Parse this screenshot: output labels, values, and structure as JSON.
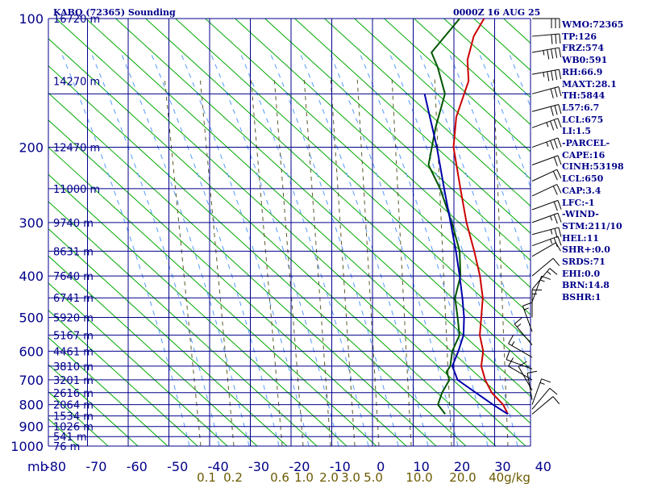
{
  "header": {
    "station": "KABQ (72365) Sounding",
    "time": "0000Z 16 AUG 25"
  },
  "indices": [
    "WMO:72365",
    "TP:126",
    "FRZ:574",
    "WB0:591",
    "RH:66.9",
    "MAXT:28.1",
    "TH:5844",
    "L57:6.7",
    "LCL:675",
    "LI:1.5",
    "-PARCEL-",
    "CAPE:16",
    "CINH:53198",
    "LCL:650",
    "CAP:3.4",
    "LFC:-1",
    "-WIND-",
    "STM:211/10",
    "HEL:11",
    "SHR+:0.0",
    "SRDS:71",
    "EHI:0.0",
    "BRN:14.8",
    "BSHR:1"
  ],
  "chart_data": {
    "type": "skew-t",
    "pressure_unit_label": "mb",
    "pressure_levels": [
      100,
      200,
      300,
      400,
      500,
      600,
      700,
      800,
      900,
      1000
    ],
    "pressure_range": [
      100,
      1000
    ],
    "temperature_ticks": [
      -80,
      -70,
      -60,
      -50,
      -40,
      -30,
      -20,
      -10,
      0,
      10,
      20,
      30,
      40
    ],
    "temperature_range": [
      -80,
      40
    ],
    "height_labels": [
      {
        "label": "16720 m",
        "p": 100
      },
      {
        "label": "14270 m",
        "p": 140
      },
      {
        "label": "12470 m",
        "p": 200
      },
      {
        "label": "11000 m",
        "p": 250
      },
      {
        "label": "9740 m",
        "p": 300
      },
      {
        "label": "8631 m",
        "p": 350
      },
      {
        "label": "7640 m",
        "p": 400
      },
      {
        "label": "6741 m",
        "p": 450
      },
      {
        "label": "5920 m",
        "p": 500
      },
      {
        "label": "5167 m",
        "p": 550
      },
      {
        "label": "4461 m",
        "p": 600
      },
      {
        "label": "3810 m",
        "p": 650
      },
      {
        "label": "3201 m",
        "p": 700
      },
      {
        "label": "2616 m",
        "p": 750
      },
      {
        "label": "2064 m",
        "p": 800
      },
      {
        "label": "1534 m",
        "p": 850
      },
      {
        "label": "1026 m",
        "p": 900
      },
      {
        "label": "541 m",
        "p": 950
      },
      {
        "label": "76 m",
        "p": 1000
      }
    ],
    "mixing_ratio_label_prefix": "",
    "mixing_ratio_labels": [
      "0.1",
      "0.2",
      "0.6",
      "1.0",
      "2.0",
      "3.0",
      "5.0",
      "10.0",
      "20.0",
      "40g/kg"
    ],
    "mixing_ratio_values": [
      0.1,
      0.2,
      0.6,
      1.0,
      2.0,
      3.0,
      5.0,
      10.0,
      20.0,
      40.0
    ],
    "series": [
      {
        "id": "temperature",
        "color": "#cc0000",
        "points": [
          [
            842,
            25.4
          ],
          [
            800,
            22.0
          ],
          [
            750,
            16.4
          ],
          [
            700,
            11.8
          ],
          [
            650,
            7.6
          ],
          [
            600,
            4.6
          ],
          [
            550,
            0.0
          ],
          [
            500,
            -3.8
          ],
          [
            450,
            -8.0
          ],
          [
            400,
            -13.8
          ],
          [
            350,
            -21.0
          ],
          [
            300,
            -29.6
          ],
          [
            250,
            -39.0
          ],
          [
            200,
            -50.4
          ],
          [
            170,
            -56.8
          ],
          [
            140,
            -62.2
          ],
          [
            125,
            -67.4
          ],
          [
            110,
            -71.4
          ],
          [
            100,
            -73.0
          ]
        ]
      },
      {
        "id": "dewpoint",
        "color": "#005500",
        "points": [
          [
            842,
            10.0
          ],
          [
            800,
            6.0
          ],
          [
            750,
            4.2
          ],
          [
            700,
            3.0
          ],
          [
            670,
            0.4
          ],
          [
            650,
            0.0
          ],
          [
            600,
            -3.0
          ],
          [
            550,
            -5.0
          ],
          [
            500,
            -9.6
          ],
          [
            450,
            -14.8
          ],
          [
            400,
            -18.6
          ],
          [
            350,
            -24.6
          ],
          [
            300,
            -33.2
          ],
          [
            250,
            -44.0
          ],
          [
            220,
            -52.4
          ],
          [
            180,
            -59.4
          ],
          [
            150,
            -65.0
          ],
          [
            130,
            -73.0
          ],
          [
            120,
            -78.0
          ],
          [
            100,
            -79.0
          ]
        ]
      },
      {
        "id": "parcel",
        "color": "#0000aa",
        "points": [
          [
            842,
            25.4
          ],
          [
            800,
            19.5
          ],
          [
            750,
            12.5
          ],
          [
            700,
            5.0
          ],
          [
            650,
            0.5
          ],
          [
            600,
            -1.5
          ],
          [
            550,
            -4.0
          ],
          [
            500,
            -8.0
          ],
          [
            450,
            -13.0
          ],
          [
            400,
            -18.8
          ],
          [
            350,
            -25.5
          ],
          [
            300,
            -33.5
          ],
          [
            250,
            -43.0
          ],
          [
            200,
            -54.5
          ],
          [
            150,
            -70.0
          ]
        ]
      }
    ],
    "wind_barbs": [
      [
        100,
        270,
        30
      ],
      [
        110,
        265,
        30
      ],
      [
        120,
        260,
        35
      ],
      [
        135,
        260,
        35
      ],
      [
        150,
        255,
        30
      ],
      [
        165,
        255,
        30
      ],
      [
        180,
        250,
        25
      ],
      [
        200,
        250,
        25
      ],
      [
        220,
        250,
        20
      ],
      [
        240,
        245,
        20
      ],
      [
        260,
        245,
        20
      ],
      [
        280,
        250,
        20
      ],
      [
        300,
        250,
        15
      ],
      [
        320,
        255,
        15
      ],
      [
        340,
        250,
        15
      ],
      [
        360,
        240,
        10
      ],
      [
        400,
        230,
        10
      ],
      [
        430,
        220,
        5
      ],
      [
        460,
        200,
        5
      ],
      [
        500,
        180,
        5
      ],
      [
        540,
        160,
        5
      ],
      [
        580,
        140,
        5
      ],
      [
        620,
        120,
        5
      ],
      [
        660,
        110,
        10
      ],
      [
        700,
        120,
        10
      ],
      [
        740,
        150,
        10
      ],
      [
        780,
        170,
        10
      ],
      [
        800,
        200,
        5
      ],
      [
        820,
        220,
        10
      ],
      [
        842,
        230,
        10
      ]
    ],
    "colors": {
      "isobar": "#00008b",
      "isotherm": "#00008b",
      "dry_adiabat": "#00aa00",
      "moist_adiabat": "#5599ff",
      "mixing_ratio": "#5a5a2a",
      "wind": "#000000",
      "labels": "#00008b",
      "mixing_labels": "#6b5a00"
    }
  }
}
